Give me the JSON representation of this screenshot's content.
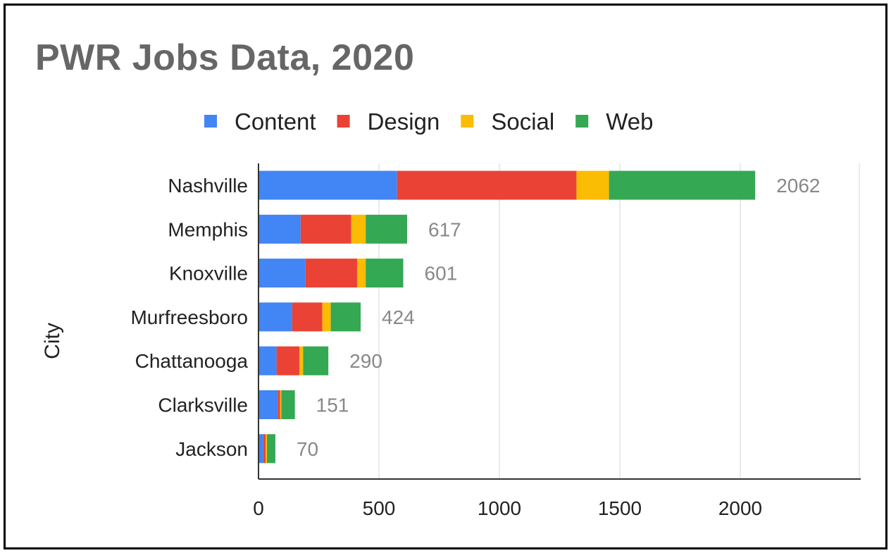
{
  "chart_data": {
    "type": "bar",
    "orientation": "horizontal",
    "stacked": true,
    "title": "PWR Jobs Data, 2020",
    "ylabel": "City",
    "xlabel": "",
    "categories": [
      "Nashville",
      "Memphis",
      "Knoxville",
      "Murfreesboro",
      "Chattanooga",
      "Clarksville",
      "Jackson"
    ],
    "series": [
      {
        "name": "Content",
        "color": "#4285f4",
        "values": [
          575,
          175,
          195,
          140,
          75,
          80,
          20
        ]
      },
      {
        "name": "Design",
        "color": "#ea4335",
        "values": [
          745,
          210,
          215,
          125,
          95,
          10,
          10
        ]
      },
      {
        "name": "Social",
        "color": "#fbbc04",
        "values": [
          135,
          60,
          35,
          35,
          15,
          5,
          5
        ]
      },
      {
        "name": "Web",
        "color": "#34a853",
        "values": [
          607,
          172,
          156,
          124,
          105,
          56,
          35
        ]
      }
    ],
    "totals": [
      2062,
      617,
      601,
      424,
      290,
      151,
      70
    ],
    "xlim": [
      0,
      2500
    ],
    "xticks": [
      0,
      500,
      1000,
      1500,
      2000
    ],
    "grid": true,
    "legend_position": "top"
  }
}
